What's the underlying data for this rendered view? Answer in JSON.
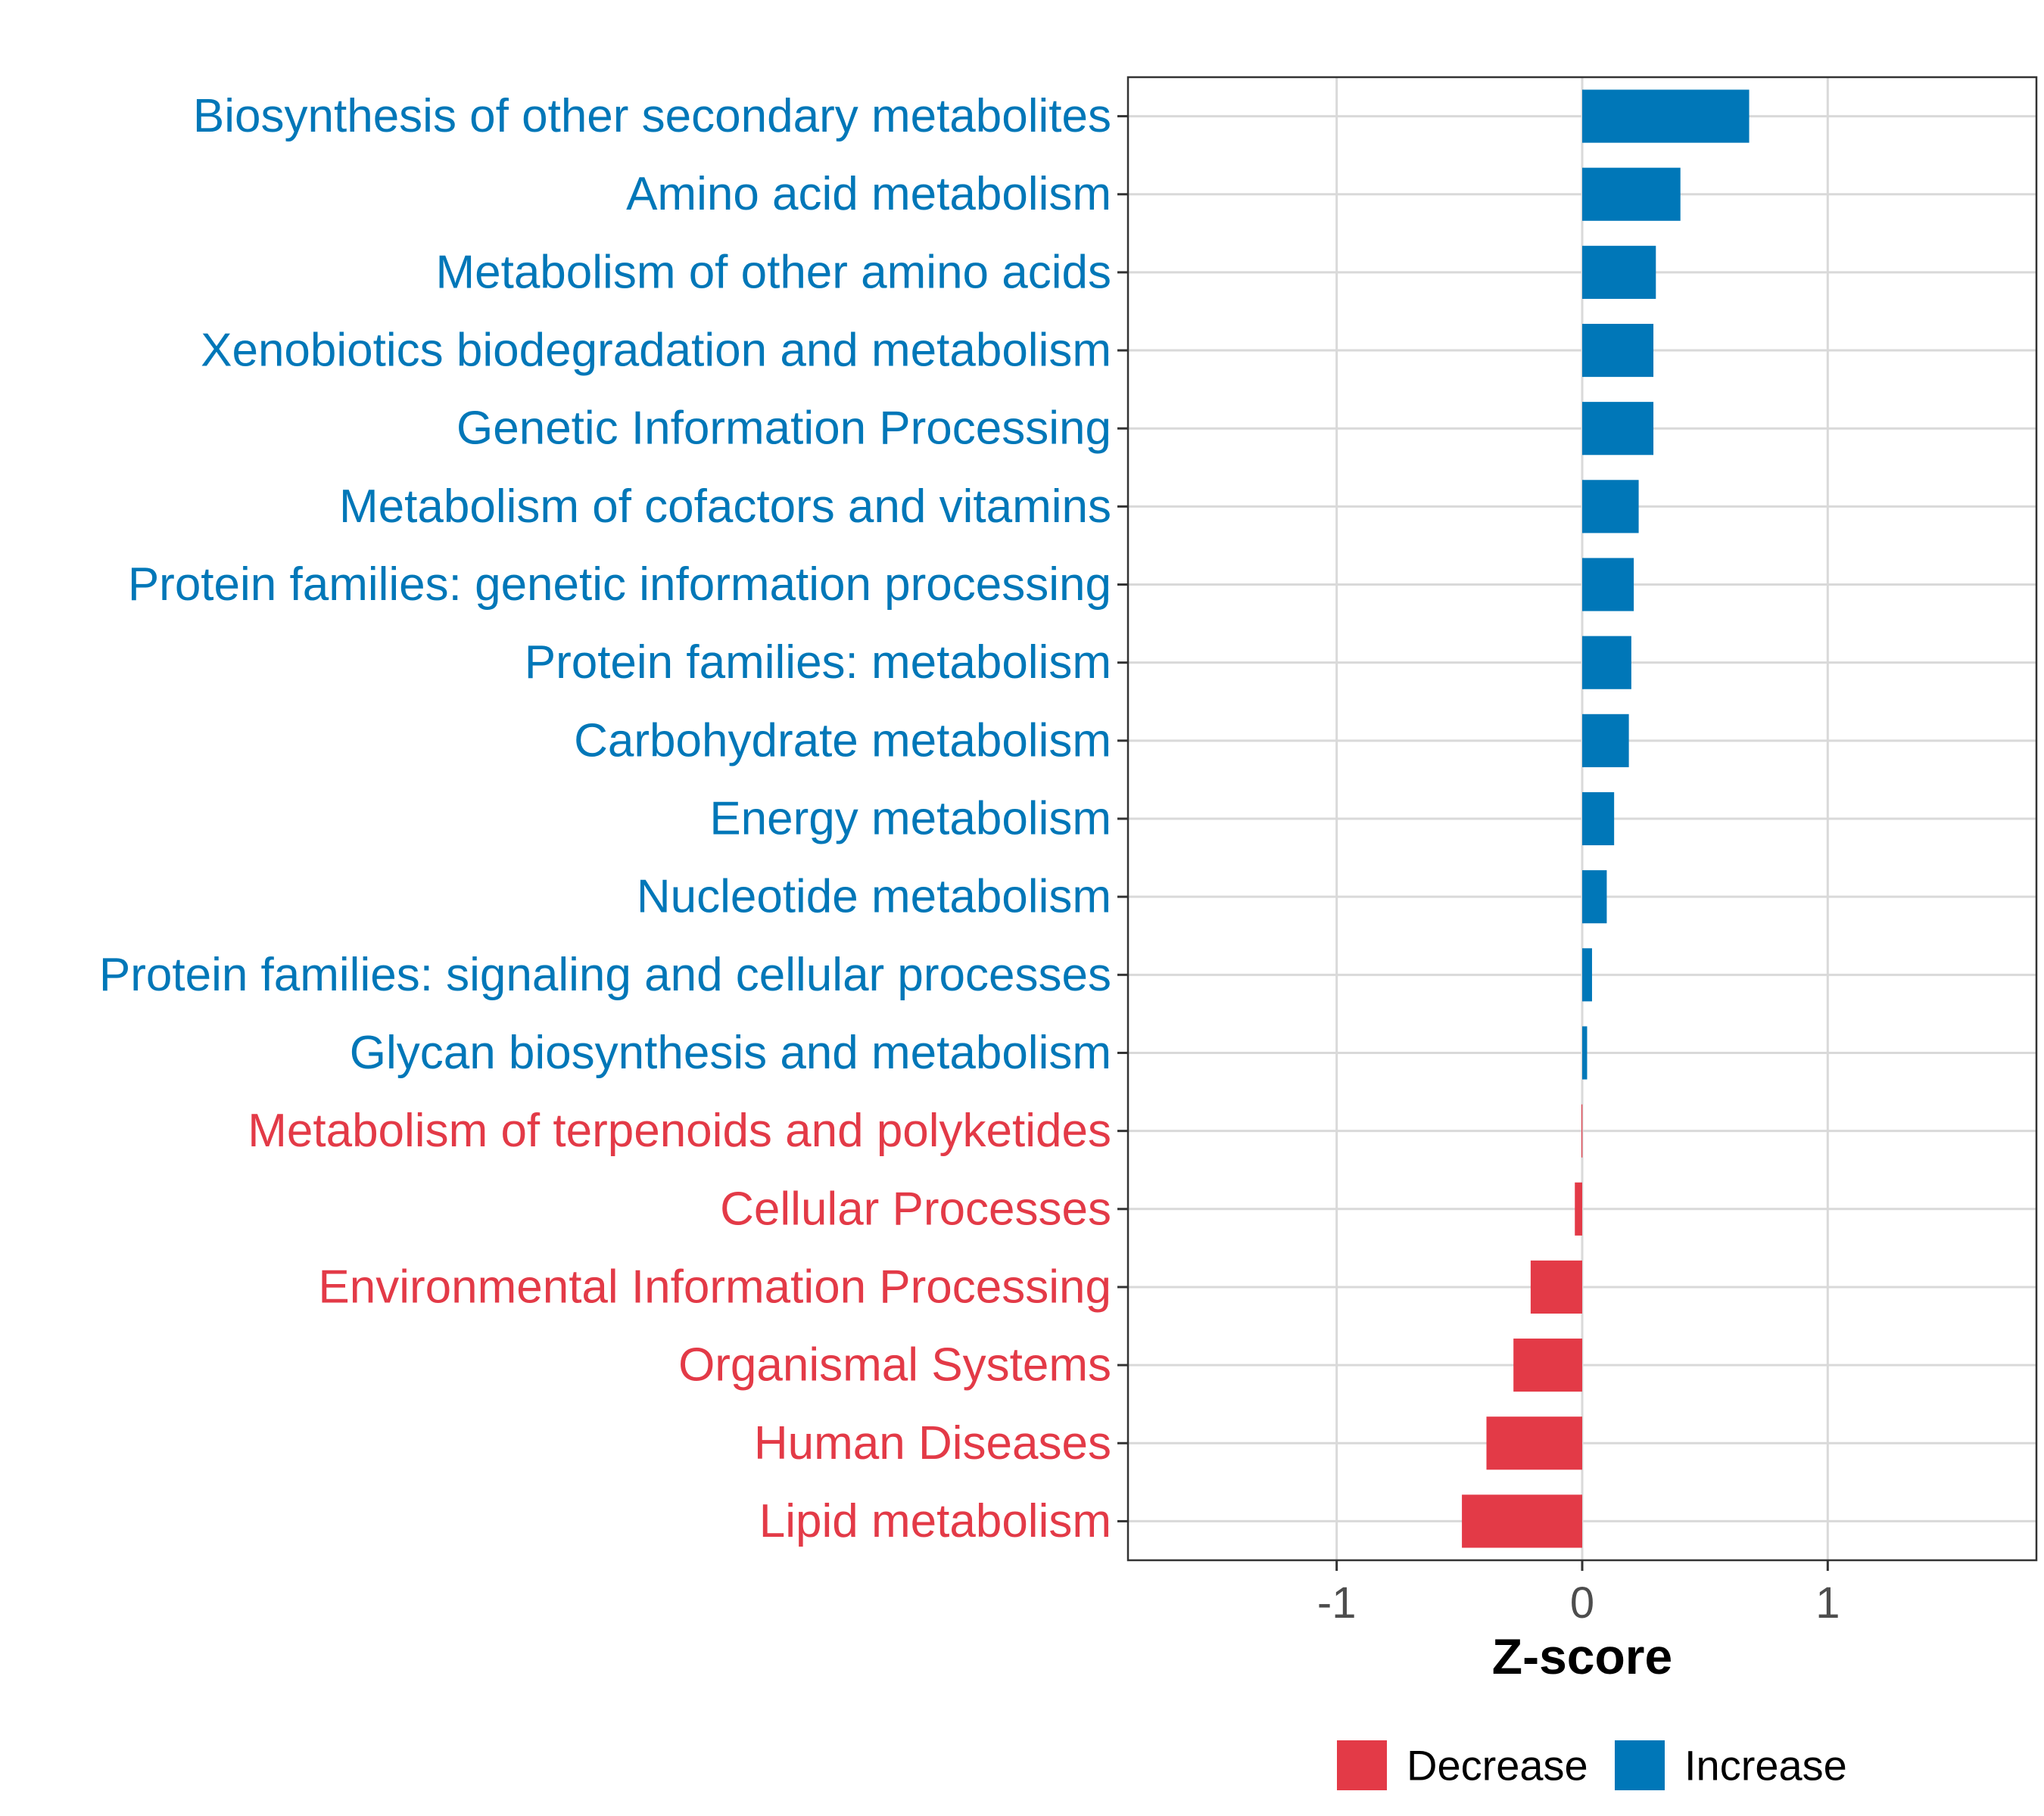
{
  "colors": {
    "increase": "#0077b8",
    "decrease": "#e33a47"
  },
  "chart_data": {
    "type": "bar",
    "orientation": "horizontal",
    "xlabel": "Z-score",
    "ylabel": "",
    "xlim": [
      -1.85,
      1.85
    ],
    "xticks": [
      -1,
      0,
      1
    ],
    "xtick_labels": [
      "-1",
      "0",
      "1"
    ],
    "grid": true,
    "legend_position": "bottom",
    "legend": [
      {
        "name": "Decrease",
        "color_key": "decrease"
      },
      {
        "name": "Increase",
        "color_key": "increase"
      }
    ],
    "categories": [
      "Biosynthesis of other secondary metabolites",
      "Amino acid metabolism",
      "Metabolism of other amino acids",
      "Xenobiotics biodegradation and metabolism",
      "Genetic Information Processing",
      "Metabolism of cofactors and vitamins",
      "Protein families: genetic information processing",
      "Protein families: metabolism",
      "Carbohydrate metabolism",
      "Energy metabolism",
      "Nucleotide metabolism",
      "Protein families: signaling and cellular processes",
      "Glycan biosynthesis and metabolism",
      "Metabolism of terpenoids and polyketides",
      "Cellular Processes",
      "Environmental Information Processing",
      "Organismal Systems",
      "Human Diseases",
      "Lipid metabolism"
    ],
    "values": [
      0.68,
      0.4,
      0.3,
      0.29,
      0.29,
      0.23,
      0.21,
      0.2,
      0.19,
      0.13,
      0.1,
      0.04,
      0.02,
      -0.003,
      -0.03,
      -0.21,
      -0.28,
      -0.39,
      -0.49
    ],
    "groups": [
      "Increase",
      "Increase",
      "Increase",
      "Increase",
      "Increase",
      "Increase",
      "Increase",
      "Increase",
      "Increase",
      "Increase",
      "Increase",
      "Increase",
      "Increase",
      "Decrease",
      "Decrease",
      "Decrease",
      "Decrease",
      "Decrease",
      "Decrease"
    ]
  }
}
